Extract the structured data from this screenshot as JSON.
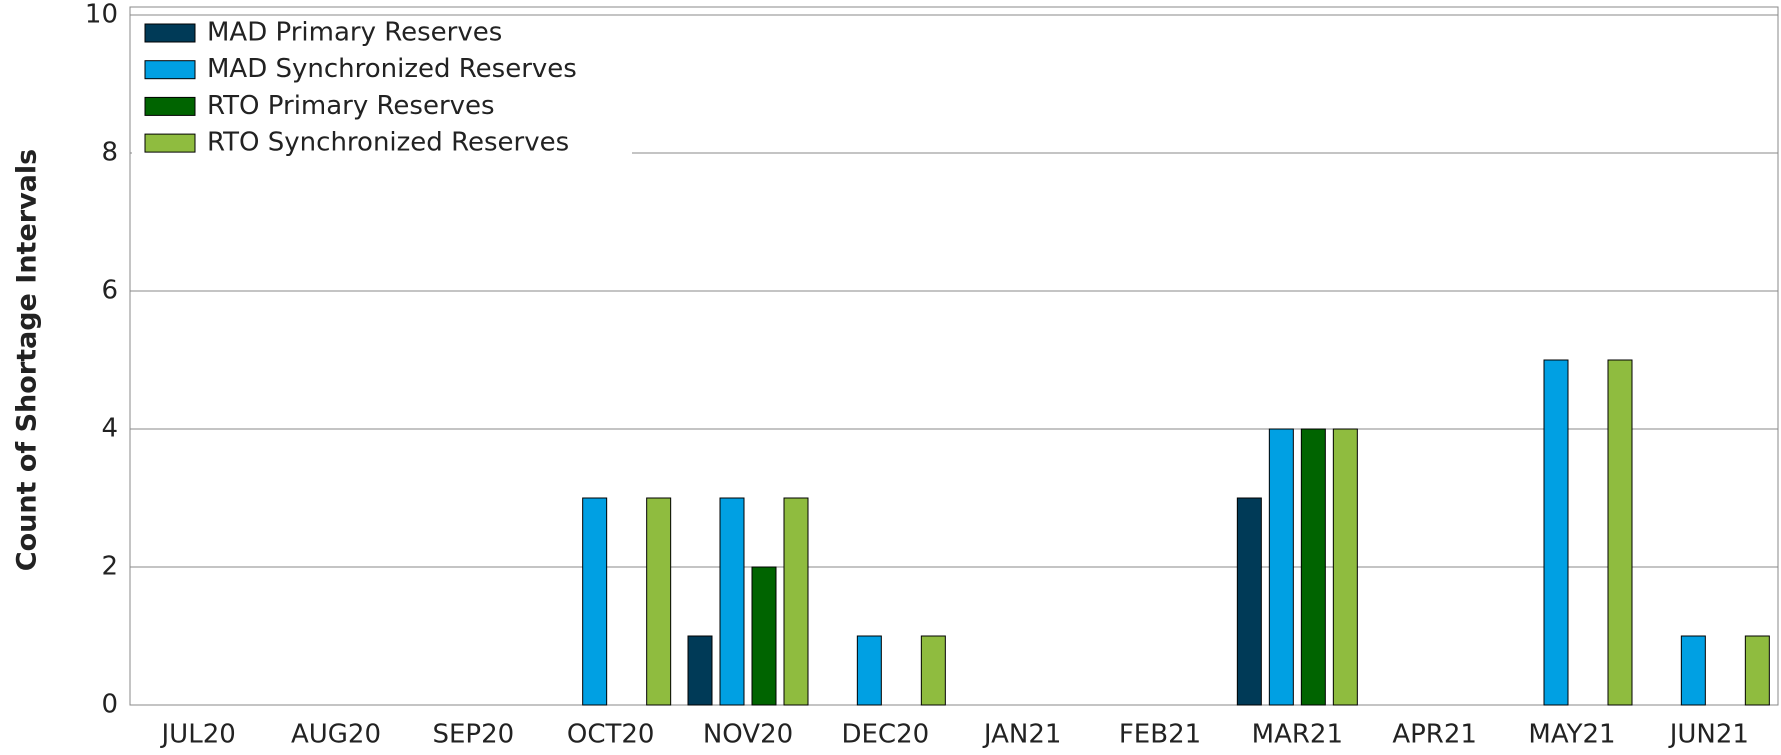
{
  "chart_data": {
    "type": "bar",
    "y_label": "Count of Shortage Intervals",
    "categories": [
      "JUL20",
      "AUG20",
      "SEP20",
      "OCT20",
      "NOV20",
      "DEC20",
      "JAN21",
      "FEB21",
      "MAR21",
      "APR21",
      "MAY21",
      "JUN21"
    ],
    "series": [
      {
        "name": "MAD Primary Reserves",
        "color": "#003a57",
        "values": [
          0,
          0,
          0,
          0,
          1,
          0,
          0,
          0,
          3,
          0,
          0,
          0
        ]
      },
      {
        "name": "MAD Synchronized Reserves",
        "color": "#00a0e3",
        "values": [
          0,
          0,
          0,
          3,
          3,
          1,
          0,
          0,
          4,
          0,
          5,
          1
        ]
      },
      {
        "name": "RTO Primary Reserves",
        "color": "#006400",
        "values": [
          0,
          0,
          0,
          0,
          2,
          0,
          0,
          0,
          4,
          0,
          0,
          0
        ]
      },
      {
        "name": "RTO Synchronized Reserves",
        "color": "#8fbc3f",
        "values": [
          0,
          0,
          0,
          3,
          3,
          1,
          0,
          0,
          4,
          0,
          5,
          1
        ]
      }
    ],
    "ylim": [
      0,
      10
    ],
    "yticks": [
      0,
      2,
      4,
      6,
      8,
      10
    ],
    "grid": true,
    "legend": "top-left"
  }
}
